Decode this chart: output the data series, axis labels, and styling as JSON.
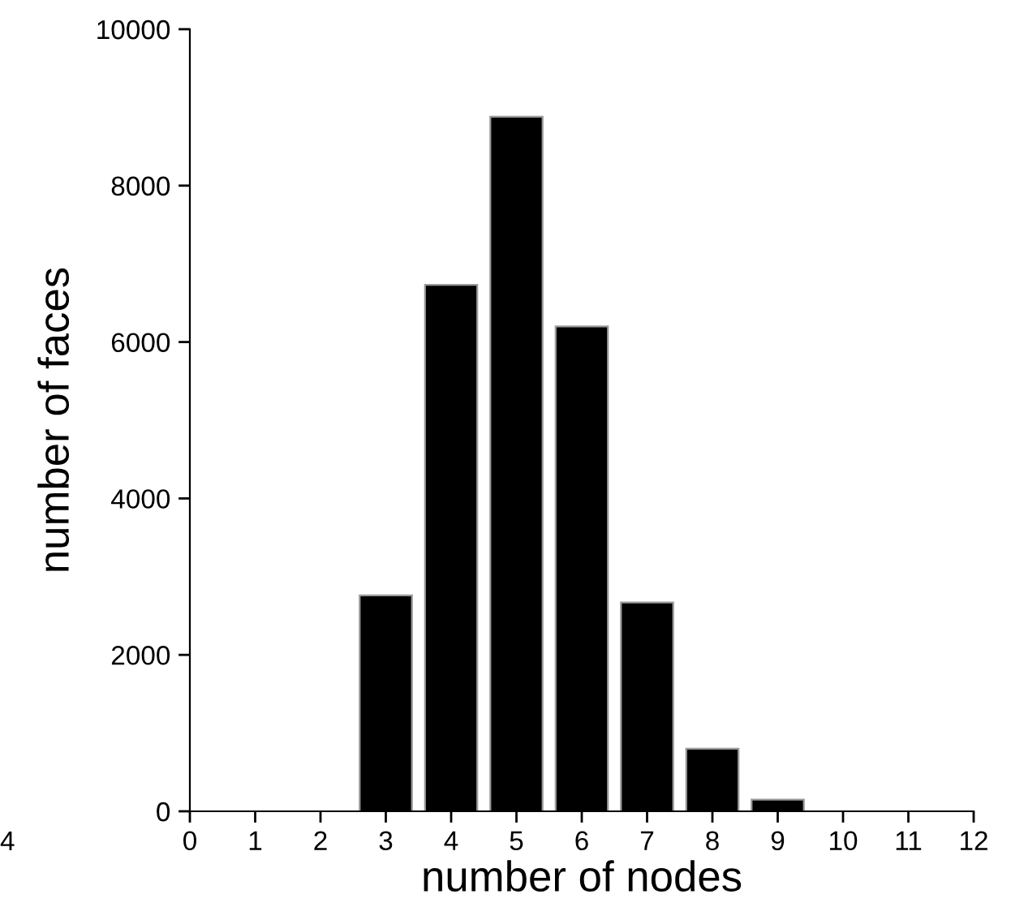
{
  "chart_data": {
    "type": "bar",
    "x": [
      3,
      4,
      5,
      6,
      7,
      8,
      9
    ],
    "values": [
      2760,
      6730,
      8880,
      6200,
      2670,
      800,
      150
    ],
    "color": "#000000",
    "xlabel": "number of nodes",
    "ylabel": "number of faces",
    "xlim": [
      0,
      12
    ],
    "xticks": [
      0,
      1,
      2,
      3,
      4,
      5,
      6,
      7,
      8,
      9,
      10,
      11,
      12
    ],
    "ylim": [
      0,
      10000
    ],
    "yticks": [
      0,
      2000,
      4000,
      6000,
      8000,
      10000
    ],
    "grid": false,
    "legend": false,
    "annotations": [
      "4"
    ]
  }
}
